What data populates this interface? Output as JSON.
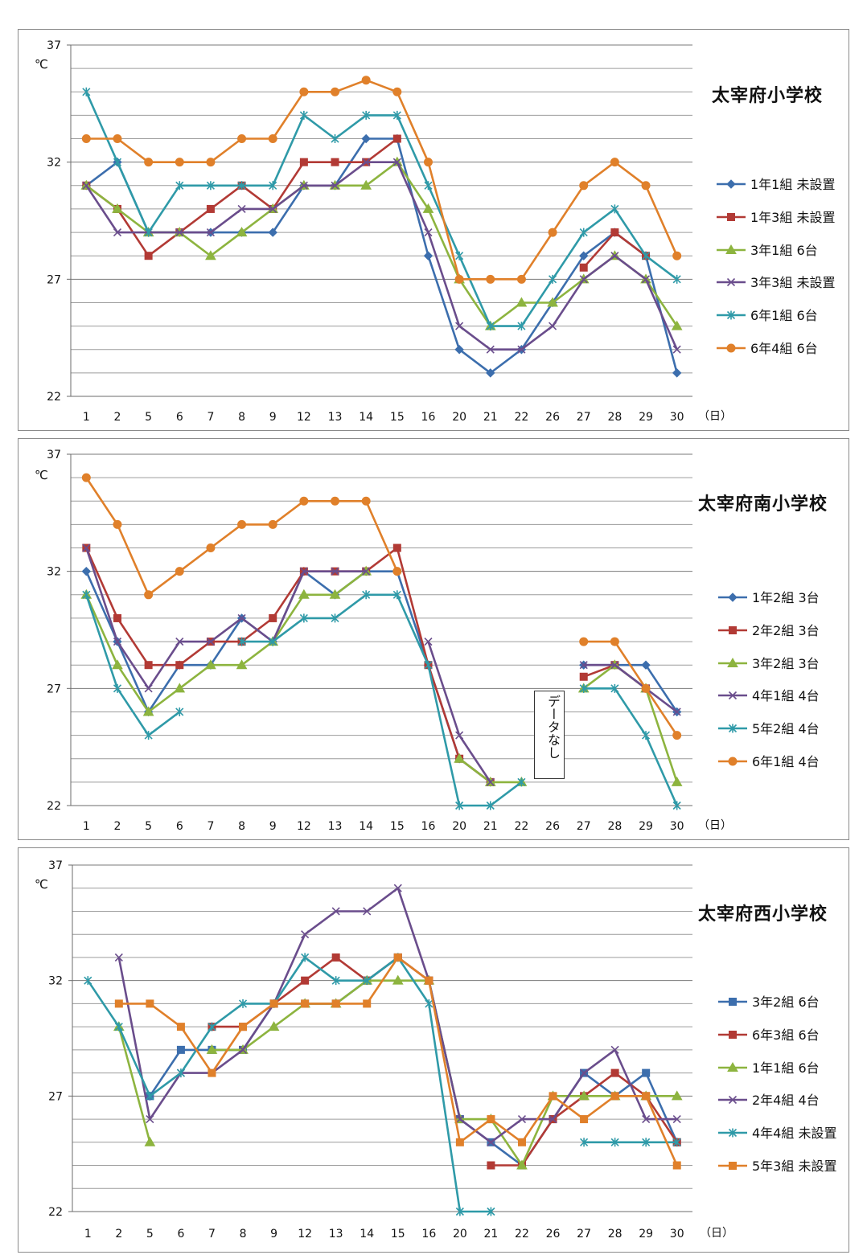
{
  "x_unit": "（日）",
  "y_unit": "℃",
  "categories": [
    "1",
    "2",
    "5",
    "6",
    "7",
    "8",
    "9",
    "12",
    "13",
    "14",
    "15",
    "16",
    "20",
    "21",
    "22",
    "26",
    "27",
    "28",
    "29",
    "30"
  ],
  "chart_data": [
    {
      "type": "line",
      "title": "太宰府小学校",
      "xlabel": "（日）",
      "ylabel": "℃",
      "ylim": [
        22,
        37
      ],
      "yticks": [
        22,
        27,
        32,
        37
      ],
      "grid": "horizontal",
      "legend": "right",
      "categories": [
        "1",
        "2",
        "5",
        "6",
        "7",
        "8",
        "9",
        "12",
        "13",
        "14",
        "15",
        "16",
        "20",
        "21",
        "22",
        "26",
        "27",
        "28",
        "29",
        "30"
      ],
      "series": [
        {
          "name": "1年1組 未設置",
          "color": "#3c6ead",
          "marker": "diamond",
          "values": [
            31,
            32,
            29,
            29,
            29,
            29,
            29,
            31,
            31,
            33,
            33,
            28,
            24,
            23,
            24,
            26,
            28,
            29,
            28,
            23
          ]
        },
        {
          "name": "1年3組 未設置",
          "color": "#b23a35",
          "marker": "square",
          "values": [
            31,
            30,
            28,
            29,
            30,
            31,
            30,
            32,
            32,
            32,
            33,
            null,
            null,
            null,
            null,
            null,
            27.5,
            29,
            28,
            null
          ]
        },
        {
          "name": "3年1組 6台",
          "color": "#8db43f",
          "marker": "triangle",
          "values": [
            31,
            30,
            29,
            29,
            28,
            29,
            30,
            31,
            31,
            31,
            32,
            30,
            27,
            25,
            26,
            26,
            27,
            28,
            27,
            25
          ]
        },
        {
          "name": "3年3組 未設置",
          "color": "#6a4d8c",
          "marker": "x",
          "values": [
            31,
            29,
            29,
            29,
            29,
            30,
            30,
            31,
            31,
            32,
            32,
            29,
            25,
            24,
            24,
            25,
            27,
            28,
            27,
            24
          ]
        },
        {
          "name": "6年1組 6台",
          "color": "#2f9aa8",
          "marker": "star",
          "values": [
            35,
            32,
            29,
            31,
            31,
            31,
            31,
            34,
            33,
            34,
            34,
            31,
            28,
            25,
            25,
            27,
            29,
            30,
            28,
            27
          ]
        },
        {
          "name": "6年4組 6台",
          "color": "#e0802a",
          "marker": "circle",
          "values": [
            33,
            33,
            32,
            32,
            32,
            33,
            33,
            35,
            35,
            35.5,
            35,
            32,
            27,
            27,
            27,
            29,
            31,
            32,
            31,
            28
          ]
        }
      ]
    },
    {
      "type": "line",
      "title": "太宰府南小学校",
      "xlabel": "（日）",
      "ylabel": "℃",
      "ylim": [
        22,
        37
      ],
      "yticks": [
        22,
        27,
        32,
        37
      ],
      "grid": "horizontal",
      "legend": "right",
      "annotation": "データなし",
      "categories": [
        "1",
        "2",
        "5",
        "6",
        "7",
        "8",
        "9",
        "12",
        "13",
        "14",
        "15",
        "16",
        "20",
        "21",
        "22",
        "26",
        "27",
        "28",
        "29",
        "30"
      ],
      "series": [
        {
          "name": "1年2組 3台",
          "color": "#3c6ead",
          "marker": "diamond",
          "values": [
            32,
            29,
            26,
            28,
            28,
            30,
            29,
            32,
            31,
            32,
            32,
            28,
            24,
            23,
            null,
            null,
            28,
            28,
            28,
            26
          ]
        },
        {
          "name": "2年2組 3台",
          "color": "#b23a35",
          "marker": "square",
          "values": [
            33,
            30,
            28,
            28,
            29,
            29,
            30,
            32,
            32,
            32,
            33,
            28,
            24,
            23,
            null,
            null,
            27.5,
            28,
            27,
            null
          ]
        },
        {
          "name": "3年2組 3台",
          "color": "#8db43f",
          "marker": "triangle",
          "values": [
            31,
            28,
            26,
            27,
            28,
            28,
            29,
            31,
            31,
            32,
            null,
            null,
            24,
            23,
            23,
            null,
            27,
            28,
            27,
            23
          ]
        },
        {
          "name": "4年1組 4台",
          "color": "#6a4d8c",
          "marker": "x",
          "values": [
            33,
            29,
            27,
            29,
            29,
            30,
            29,
            32,
            32,
            32,
            null,
            29,
            25,
            23,
            null,
            null,
            28,
            28,
            27,
            26
          ]
        },
        {
          "name": "5年2組 4台",
          "color": "#2f9aa8",
          "marker": "star",
          "values": [
            31,
            27,
            25,
            26,
            null,
            29,
            29,
            30,
            30,
            31,
            31,
            28,
            22,
            22,
            23,
            null,
            27,
            27,
            25,
            22
          ]
        },
        {
          "name": "6年1組 4台",
          "color": "#e0802a",
          "marker": "circle",
          "values": [
            36,
            34,
            31,
            32,
            33,
            34,
            34,
            35,
            35,
            35,
            32,
            null,
            null,
            null,
            null,
            null,
            29,
            29,
            27,
            25
          ]
        }
      ]
    },
    {
      "type": "line",
      "title": "太宰府西小学校",
      "xlabel": "（日）",
      "ylabel": "℃",
      "ylim": [
        22,
        37
      ],
      "yticks": [
        22,
        27,
        32,
        37
      ],
      "grid": "horizontal",
      "legend": "right",
      "categories": [
        "1",
        "2",
        "5",
        "6",
        "7",
        "8",
        "9",
        "12",
        "13",
        "14",
        "15",
        "16",
        "20",
        "21",
        "22",
        "26",
        "27",
        "28",
        "29",
        "30"
      ],
      "series": [
        {
          "name": "3年2組 6台",
          "color": "#3c6ead",
          "marker": "square",
          "values": [
            null,
            null,
            27,
            29,
            29,
            29,
            31,
            31,
            31,
            32,
            33,
            32,
            26,
            25,
            24,
            26,
            28,
            27,
            28,
            25
          ]
        },
        {
          "name": "6年3組 6台",
          "color": "#b23a35",
          "marker": "square",
          "values": [
            null,
            null,
            null,
            null,
            30,
            30,
            31,
            32,
            33,
            32,
            33,
            32,
            null,
            24,
            24,
            26,
            27,
            28,
            27,
            25
          ]
        },
        {
          "name": "1年1組 6台",
          "color": "#8db43f",
          "marker": "triangle",
          "values": [
            null,
            30,
            25,
            null,
            29,
            29,
            30,
            31,
            31,
            32,
            32,
            32,
            26,
            26,
            24,
            27,
            27,
            27,
            27,
            27
          ]
        },
        {
          "name": "2年4組 4台",
          "color": "#6a4d8c",
          "marker": "x",
          "values": [
            null,
            33,
            26,
            28,
            28,
            29,
            31,
            34,
            35,
            35,
            36,
            32,
            26,
            25,
            26,
            26,
            28,
            29,
            26,
            26
          ]
        },
        {
          "name": "4年4組 未設置",
          "color": "#2f9aa8",
          "marker": "star",
          "values": [
            32,
            30,
            27,
            28,
            30,
            31,
            31,
            33,
            32,
            32,
            33,
            31,
            22,
            22,
            null,
            null,
            25,
            25,
            25,
            25
          ]
        },
        {
          "name": "5年3組 未設置",
          "color": "#e0802a",
          "marker": "square",
          "values": [
            null,
            31,
            31,
            30,
            28,
            30,
            31,
            31,
            31,
            31,
            33,
            32,
            25,
            26,
            25,
            27,
            26,
            27,
            27,
            24
          ]
        }
      ]
    }
  ]
}
